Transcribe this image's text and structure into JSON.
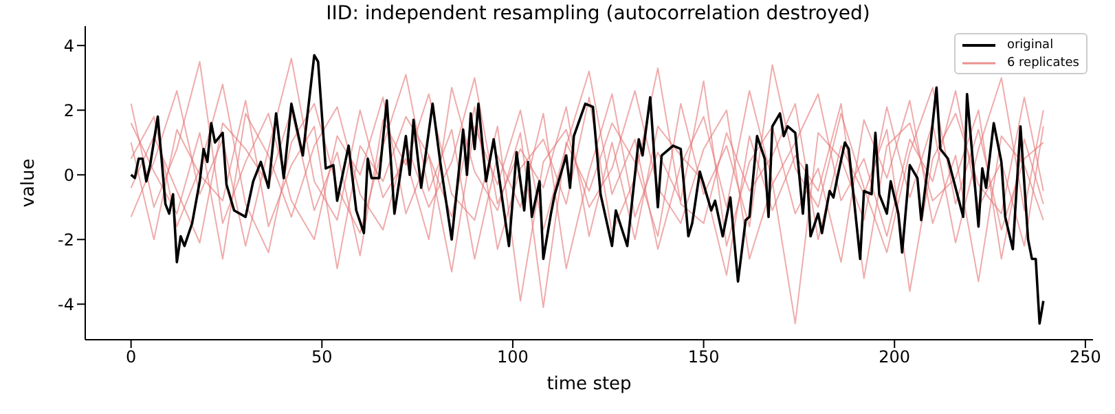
{
  "chart_data": {
    "type": "line",
    "title": "IID: independent resampling (autocorrelation destroyed)",
    "xlabel": "time step",
    "ylabel": "value",
    "x": [
      0,
      6,
      12,
      18,
      24,
      30,
      36,
      42,
      48,
      54,
      60,
      66,
      72,
      78,
      84,
      90,
      96,
      102,
      108,
      114,
      120,
      126,
      132,
      138,
      144,
      150,
      156,
      162,
      168,
      174,
      180,
      186,
      192,
      198,
      204,
      210,
      216,
      222,
      228,
      234,
      239
    ],
    "xlim": [
      -12,
      252
    ],
    "ylim": [
      -5.1,
      4.6
    ],
    "xticks": [
      0,
      50,
      100,
      150,
      200,
      250
    ],
    "yticks": [
      -4,
      -2,
      0,
      2,
      4
    ],
    "legend": "top right",
    "series": [
      {
        "name": "6 replicates",
        "color": "#e57373",
        "values": [
          2.2,
          -1.0,
          0.8,
          3.5,
          -1.5,
          0.4,
          1.9,
          -0.8,
          -2.0,
          1.2,
          0.0,
          2.4,
          -1.2,
          0.6,
          -3.0,
          1.5,
          -0.3,
          2.0,
          -1.7,
          0.9,
          3.2,
          -0.6,
          1.1,
          -2.3,
          0.3,
          1.8,
          -1.0,
          2.6,
          -0.2,
          -4.6,
          1.3,
          0.5,
          -1.4,
          2.1,
          -0.7,
          1.6,
          -2.1,
          0.8,
          3.0,
          -1.1,
          2.0
        ]
      },
      {
        "color": "#e57373",
        "values": [
          0.5,
          1.8,
          -1.6,
          0.2,
          2.8,
          -0.9,
          -2.4,
          1.0,
          2.2,
          -0.4,
          -1.8,
          0.9,
          3.1,
          -0.5,
          1.4,
          -2.6,
          0.6,
          -1.0,
          1.9,
          -2.9,
          0.1,
          2.5,
          -1.3,
          0.7,
          -0.8,
          2.9,
          -2.2,
          0.4,
          1.5,
          -1.2,
          0.2,
          -2.7,
          1.7,
          -0.1,
          2.3,
          -1.5,
          0.6,
          -3.3,
          1.2,
          0.3,
          -1.4
        ]
      },
      {
        "color": "#e57373",
        "values": [
          -1.3,
          0.4,
          2.6,
          -0.6,
          1.1,
          -2.2,
          0.8,
          3.6,
          -0.2,
          -1.4,
          2.0,
          -0.7,
          0.5,
          -2.0,
          2.7,
          0.1,
          -1.1,
          1.3,
          -4.1,
          1.0,
          -0.5,
          1.6,
          0.4,
          -1.9,
          2.2,
          -0.6,
          0.9,
          -1.6,
          3.4,
          0.2,
          -1.0,
          1.9,
          -0.4,
          -2.4,
          0.7,
          2.7,
          -0.9,
          1.4,
          -1.7,
          0.5,
          1.0
        ]
      },
      {
        "color": "#e57373",
        "values": [
          1.0,
          -2.0,
          1.4,
          0.0,
          -0.8,
          2.3,
          -1.6,
          0.3,
          1.5,
          -2.9,
          0.9,
          -0.2,
          1.8,
          0.6,
          -1.3,
          2.1,
          -2.3,
          0.2,
          1.1,
          -0.9,
          2.4,
          -1.8,
          -0.1,
          3.3,
          -0.9,
          -1.5,
          1.3,
          -0.5,
          0.6,
          2.2,
          -2.0,
          0.9,
          -0.6,
          1.4,
          -3.6,
          0.5,
          1.9,
          -0.3,
          -1.2,
          2.4,
          -0.5
        ]
      },
      {
        "color": "#e57373",
        "values": [
          -0.4,
          1.2,
          -0.5,
          -2.1,
          1.6,
          0.8,
          -0.3,
          2.0,
          -1.1,
          0.7,
          -2.5,
          1.7,
          0.3,
          2.5,
          -0.6,
          -1.4,
          1.5,
          -3.9,
          0.4,
          1.4,
          -1.0,
          0.2,
          2.6,
          -0.4,
          -1.5,
          0.8,
          2.0,
          -2.6,
          -0.3,
          1.0,
          2.5,
          -0.8,
          0.5,
          -1.9,
          1.1,
          -0.2,
          2.6,
          -1.0,
          0.4,
          -2.2,
          1.5
        ]
      },
      {
        "color": "#e57373",
        "values": [
          1.6,
          0.1,
          -1.2,
          1.3,
          -2.6,
          1.9,
          0.6,
          -1.3,
          0.9,
          2.1,
          -0.6,
          -1.7,
          1.0,
          -1.0,
          0.4,
          3.0,
          -0.9,
          0.8,
          -0.4,
          2.1,
          -1.9,
          1.0,
          -2.0,
          1.5,
          0.6,
          -0.2,
          -3.1,
          1.2,
          -1.1,
          0.6,
          -0.5,
          2.2,
          -3.2,
          0.9,
          1.6,
          -0.8,
          -0.1,
          2.0,
          -2.6,
          1.1,
          -0.9
        ]
      },
      {
        "name": "original",
        "color": "#000000",
        "x": [
          0,
          1,
          2,
          3,
          4,
          5,
          7,
          8,
          9,
          10,
          11,
          12,
          13,
          14,
          16,
          18,
          19,
          20,
          21,
          22,
          24,
          25,
          27,
          30,
          32,
          34,
          36,
          38,
          40,
          42,
          45,
          48,
          49,
          51,
          53,
          54,
          57,
          59,
          61,
          62,
          63,
          65,
          67,
          69,
          72,
          73,
          74,
          76,
          79,
          81,
          84,
          87,
          88,
          89,
          90,
          91,
          93,
          95,
          99,
          101,
          103,
          104,
          105,
          107,
          108,
          110,
          111,
          114,
          115,
          116,
          119,
          121,
          123,
          126,
          127,
          130,
          133,
          134,
          136,
          138,
          139,
          142,
          144,
          146,
          147,
          149,
          150,
          152,
          153,
          155,
          157,
          159,
          161,
          162,
          164,
          166,
          167,
          168,
          170,
          171,
          172,
          174,
          176,
          177,
          178,
          180,
          181,
          183,
          184,
          185,
          187,
          188,
          191,
          192,
          194,
          195,
          196,
          198,
          199,
          201,
          202,
          204,
          206,
          207,
          209,
          211,
          212,
          214,
          218,
          219,
          222,
          223,
          224,
          226,
          228,
          229,
          231,
          233,
          235,
          236,
          237,
          238,
          239
        ],
        "values": [
          0,
          -0.1,
          0.5,
          0.5,
          -0.2,
          0.3,
          1.8,
          0.5,
          -0.9,
          -1.2,
          -0.6,
          -2.7,
          -1.9,
          -2.2,
          -1.5,
          -0.2,
          0.8,
          0.4,
          1.6,
          1.0,
          1.3,
          -0.3,
          -1.1,
          -1.3,
          -0.2,
          0.4,
          -0.4,
          1.9,
          -0.1,
          2.2,
          0.6,
          3.7,
          3.5,
          0.2,
          0.3,
          -0.8,
          0.9,
          -1.1,
          -1.8,
          0.5,
          -0.1,
          -0.1,
          2.3,
          -1.2,
          1.2,
          0.0,
          1.7,
          -0.4,
          2.2,
          0.4,
          -2.0,
          1.4,
          0.0,
          1.9,
          0.8,
          2.2,
          -0.2,
          1.1,
          -2.2,
          0.7,
          -1.1,
          0.4,
          -1.3,
          -0.2,
          -2.6,
          -1.2,
          -0.6,
          0.6,
          -0.4,
          1.2,
          2.2,
          2.1,
          -0.6,
          -2.2,
          -1.1,
          -2.2,
          1.1,
          0.6,
          2.4,
          -1.0,
          0.6,
          0.9,
          0.8,
          -1.9,
          -1.5,
          0.1,
          -0.3,
          -1.1,
          -0.8,
          -1.9,
          -0.7,
          -3.3,
          -1.4,
          -1.3,
          1.2,
          0.5,
          -1.3,
          1.5,
          1.9,
          1.2,
          1.5,
          1.3,
          -1.2,
          0.3,
          -1.9,
          -1.2,
          -1.8,
          -0.5,
          -0.7,
          -0.1,
          1.0,
          0.8,
          -2.6,
          -0.5,
          -0.6,
          1.3,
          -0.6,
          -1.2,
          -0.2,
          -1.2,
          -2.4,
          0.3,
          -0.1,
          -1.4,
          0.5,
          2.7,
          0.8,
          0.5,
          -1.3,
          2.5,
          -1.6,
          0.2,
          -0.4,
          1.6,
          0.4,
          -1.3,
          -2.3,
          1.5,
          -2.0,
          -2.6,
          -2.6,
          -4.6,
          -3.9
        ]
      }
    ]
  }
}
